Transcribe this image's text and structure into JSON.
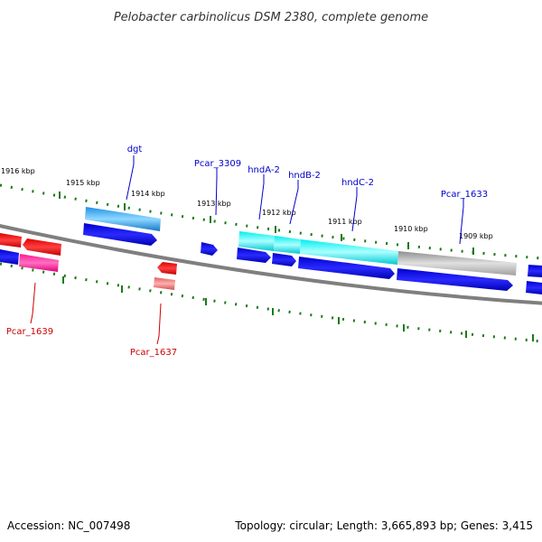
{
  "title": "Pelobacter carbinolicus DSM 2380, complete genome",
  "footer": {
    "accession": "Accession: NC_007498",
    "summary": "Topology: circular; Length: 3,665,893 bp; Genes: 3,415"
  },
  "ruler": {
    "ticks": [
      "1916 kbp",
      "1915 kbp",
      "1914 kbp",
      "1913 kbp",
      "1912 kbp",
      "1911 kbp",
      "1910 kbp",
      "1909 kbp"
    ]
  },
  "genes": {
    "forward_labels": [
      "dgt",
      "Pcar_3309",
      "hndA-2",
      "hndB-2",
      "hndC-2",
      "Pcar_1633"
    ],
    "reverse_labels": [
      "Pcar_1639",
      "Pcar_1637"
    ]
  },
  "colors": {
    "forward_label": "#0000cc",
    "reverse_label": "#cc0000",
    "backbone": "#808080",
    "tick": "#228b22",
    "cds": "#0000ee",
    "cyan": "#00e5ee",
    "lightblue": "#1ea0e6",
    "gray": "#b0b0b0",
    "red": "#ff0000",
    "magenta": "#ff1493",
    "pink": "#f08080"
  }
}
